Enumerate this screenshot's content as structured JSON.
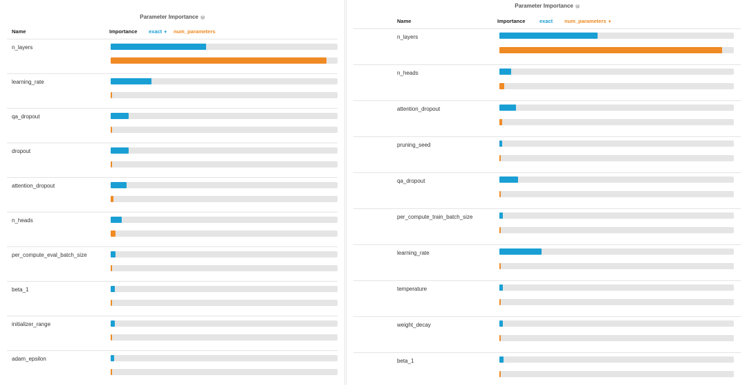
{
  "colors": {
    "exact": "#1a9fd4",
    "num_parameters": "#f08a24",
    "track": "#e5e5e5"
  },
  "panels": [
    {
      "title": "Parameter Importance",
      "help_icon": "question-circle-icon",
      "headers": {
        "name": "Name",
        "importance": "Importance",
        "metric1": "exact",
        "metric2": "num_parameters"
      },
      "rows": [
        {
          "name": "n_layers",
          "exact": 0.42,
          "num_parameters": 0.95
        },
        {
          "name": "learning_rate",
          "exact": 0.18,
          "num_parameters": 0.004
        },
        {
          "name": "qa_dropout",
          "exact": 0.08,
          "num_parameters": 0.004
        },
        {
          "name": "dropout",
          "exact": 0.08,
          "num_parameters": 0.004
        },
        {
          "name": "attention_dropout",
          "exact": 0.07,
          "num_parameters": 0.012
        },
        {
          "name": "n_heads",
          "exact": 0.05,
          "num_parameters": 0.02
        },
        {
          "name": "per_compute_eval_batch_size",
          "exact": 0.02,
          "num_parameters": 0.004
        },
        {
          "name": "beta_1",
          "exact": 0.018,
          "num_parameters": 0.004
        },
        {
          "name": "initializer_range",
          "exact": 0.018,
          "num_parameters": 0.004
        },
        {
          "name": "adam_epsilon",
          "exact": 0.016,
          "num_parameters": 0.004
        }
      ]
    },
    {
      "title": "Parameter Importance",
      "help_icon": "question-circle-icon",
      "headers": {
        "name": "Name",
        "importance": "Importance",
        "metric1": "exact",
        "metric2": "num_parameters"
      },
      "rows": [
        {
          "name": "n_layers",
          "exact": 0.42,
          "num_parameters": 0.95
        },
        {
          "name": "n_heads",
          "exact": 0.05,
          "num_parameters": 0.02
        },
        {
          "name": "attention_dropout",
          "exact": 0.07,
          "num_parameters": 0.012
        },
        {
          "name": "pruning_seed",
          "exact": 0.012,
          "num_parameters": 0.004
        },
        {
          "name": "qa_dropout",
          "exact": 0.08,
          "num_parameters": 0.004
        },
        {
          "name": "per_compute_train_batch_size",
          "exact": 0.014,
          "num_parameters": 0.004
        },
        {
          "name": "learning_rate",
          "exact": 0.18,
          "num_parameters": 0.004
        },
        {
          "name": "temperature",
          "exact": 0.014,
          "num_parameters": 0.004
        },
        {
          "name": "weight_decay",
          "exact": 0.014,
          "num_parameters": 0.004
        },
        {
          "name": "beta_1",
          "exact": 0.018,
          "num_parameters": 0.004
        }
      ]
    }
  ],
  "chart_data": [
    {
      "type": "bar",
      "title": "Parameter Importance",
      "categories": [
        "n_layers",
        "learning_rate",
        "qa_dropout",
        "dropout",
        "attention_dropout",
        "n_heads",
        "per_compute_eval_batch_size",
        "beta_1",
        "initializer_range",
        "adam_epsilon"
      ],
      "series": [
        {
          "name": "exact",
          "values": [
            0.42,
            0.18,
            0.08,
            0.08,
            0.07,
            0.05,
            0.02,
            0.018,
            0.018,
            0.016
          ]
        },
        {
          "name": "num_parameters",
          "values": [
            0.95,
            0.004,
            0.004,
            0.004,
            0.012,
            0.02,
            0.004,
            0.004,
            0.004,
            0.004
          ]
        }
      ],
      "xlim": [
        0,
        1
      ]
    },
    {
      "type": "bar",
      "title": "Parameter Importance",
      "categories": [
        "n_layers",
        "n_heads",
        "attention_dropout",
        "pruning_seed",
        "qa_dropout",
        "per_compute_train_batch_size",
        "learning_rate",
        "temperature",
        "weight_decay",
        "beta_1"
      ],
      "series": [
        {
          "name": "exact",
          "values": [
            0.42,
            0.05,
            0.07,
            0.012,
            0.08,
            0.014,
            0.18,
            0.014,
            0.014,
            0.018
          ]
        },
        {
          "name": "num_parameters",
          "values": [
            0.95,
            0.02,
            0.012,
            0.004,
            0.004,
            0.004,
            0.004,
            0.004,
            0.004,
            0.004
          ]
        }
      ],
      "xlim": [
        0,
        1
      ]
    }
  ]
}
